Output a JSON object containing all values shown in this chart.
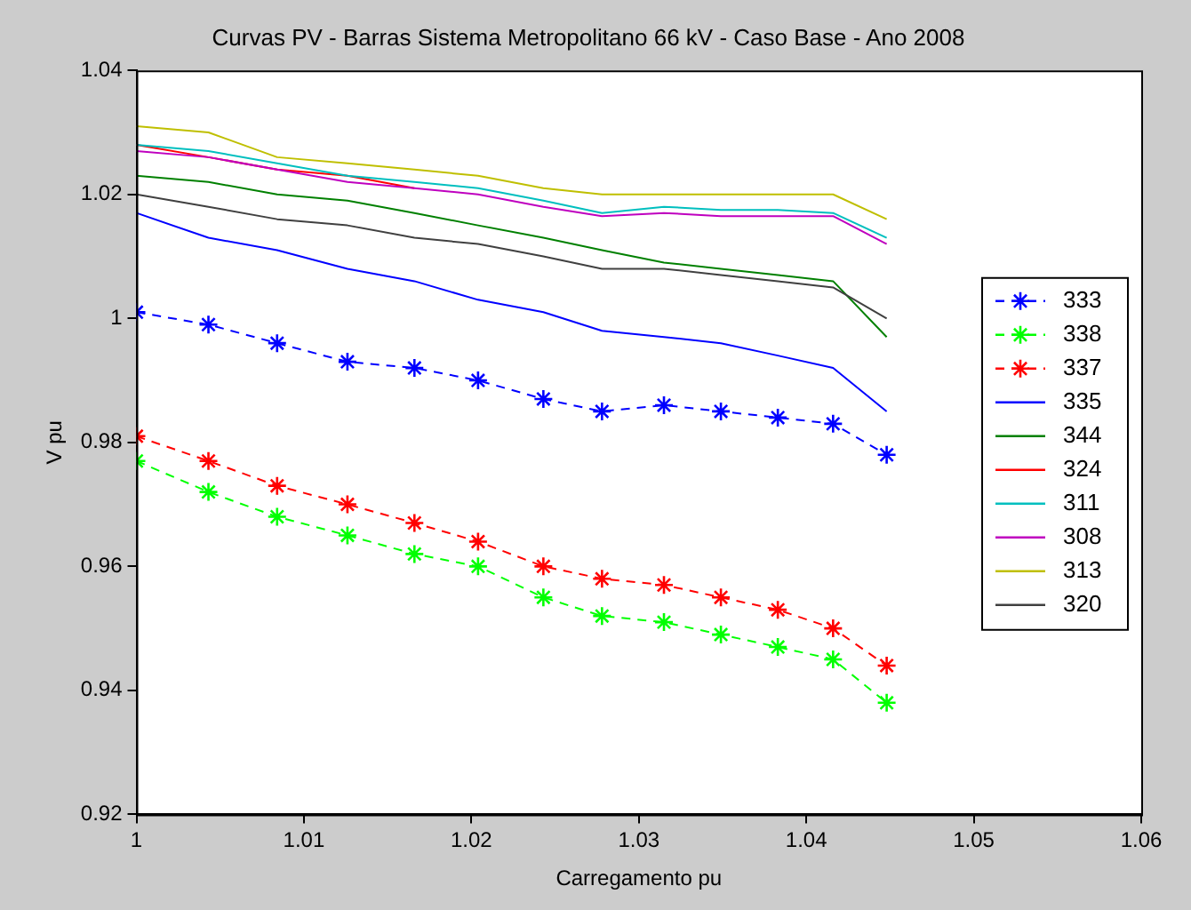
{
  "chart_data": {
    "type": "line",
    "title": "Curvas PV - Barras Sistema Metropolitano 66 kV - Caso Base - Ano 2008",
    "xlabel": "Carregamento pu",
    "ylabel": "V pu",
    "x": [
      1.0,
      1.0043,
      1.0084,
      1.0126,
      1.0166,
      1.0204,
      1.0243,
      1.0278,
      1.0315,
      1.0349,
      1.0383,
      1.0416,
      1.0448
    ],
    "xlim": [
      1,
      1.06
    ],
    "xticks": [
      1,
      1.01,
      1.02,
      1.03,
      1.04,
      1.05,
      1.06
    ],
    "ylim": [
      0.92,
      1.04
    ],
    "yticks": [
      0.92,
      0.94,
      0.96,
      0.98,
      1,
      1.02,
      1.04
    ],
    "grid": false,
    "legend": "right",
    "series": [
      {
        "name": "333",
        "color": "#0000ff",
        "marker": "cross",
        "line_style": "dashed",
        "values": [
          1.001,
          0.999,
          0.996,
          0.993,
          0.992,
          0.99,
          0.987,
          0.985,
          0.986,
          0.985,
          0.984,
          0.983,
          0.978
        ]
      },
      {
        "name": "338",
        "color": "#00ff00",
        "marker": "cross",
        "line_style": "dashed",
        "values": [
          0.977,
          0.972,
          0.968,
          0.965,
          0.962,
          0.96,
          0.955,
          0.952,
          0.951,
          0.949,
          0.947,
          0.945,
          0.938
        ]
      },
      {
        "name": "337",
        "color": "#ff0000",
        "marker": "cross",
        "line_style": "dashed",
        "values": [
          0.981,
          0.977,
          0.973,
          0.97,
          0.967,
          0.964,
          0.96,
          0.958,
          0.957,
          0.955,
          0.953,
          0.95,
          0.944
        ]
      },
      {
        "name": "335",
        "color": "#0000ff",
        "marker": "none",
        "line_style": "solid",
        "values": [
          1.017,
          1.013,
          1.011,
          1.008,
          1.006,
          1.003,
          1.001,
          0.998,
          0.997,
          0.996,
          0.994,
          0.992,
          0.985
        ]
      },
      {
        "name": "344",
        "color": "#008000",
        "marker": "none",
        "line_style": "solid",
        "values": [
          1.023,
          1.022,
          1.02,
          1.019,
          1.017,
          1.015,
          1.013,
          1.011,
          1.009,
          1.008,
          1.007,
          1.006,
          0.997
        ]
      },
      {
        "name": "324",
        "color": "#ff0000",
        "marker": "none",
        "line_style": "solid",
        "values": [
          1.028,
          1.026,
          1.024,
          1.023,
          1.021,
          null,
          null,
          null,
          null,
          null,
          null,
          null,
          null
        ]
      },
      {
        "name": "311",
        "color": "#00bfbf",
        "marker": "none",
        "line_style": "solid",
        "values": [
          1.028,
          1.027,
          1.025,
          1.023,
          1.022,
          1.021,
          1.019,
          1.017,
          1.018,
          1.0175,
          1.0175,
          1.017,
          1.013
        ]
      },
      {
        "name": "308",
        "color": "#bf00bf",
        "marker": "none",
        "line_style": "solid",
        "values": [
          1.027,
          1.026,
          1.024,
          1.022,
          1.021,
          1.02,
          1.018,
          1.0165,
          1.017,
          1.0165,
          1.0165,
          1.0165,
          1.012
        ]
      },
      {
        "name": "313",
        "color": "#bfbf00",
        "marker": "none",
        "line_style": "solid",
        "values": [
          1.031,
          1.03,
          1.026,
          1.025,
          1.024,
          1.023,
          1.021,
          1.02,
          1.02,
          1.02,
          1.02,
          1.02,
          1.016
        ]
      },
      {
        "name": "320",
        "color": "#404040",
        "marker": "none",
        "line_style": "solid",
        "values": [
          1.02,
          1.018,
          1.016,
          1.015,
          1.013,
          1.012,
          1.01,
          1.008,
          1.008,
          1.007,
          1.006,
          1.005,
          1.0
        ]
      }
    ]
  }
}
